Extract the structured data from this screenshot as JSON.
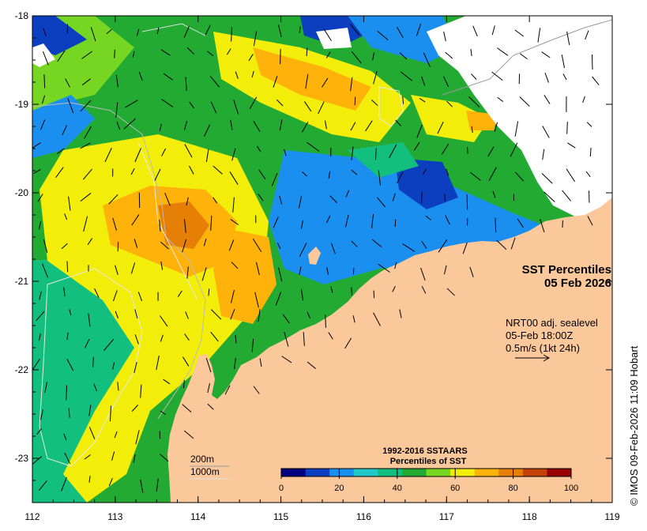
{
  "title": {
    "line1": "SST Percentiles",
    "line2": "05 Feb 2026"
  },
  "currents_info": {
    "line1": "NRT00 adj. sealevel",
    "line2": "05-Feb 18:00Z",
    "line3": "0.5m/s (1kt 24h)"
  },
  "colorbar": {
    "title1": "1992-2016 SSTAARS",
    "title2": "Percentiles of SST",
    "colors": [
      "#00007f",
      "#0b3fbf",
      "#1a8ff0",
      "#22c8c8",
      "#12bf7f",
      "#22aa33",
      "#77d622",
      "#f2ee0a",
      "#ffb20a",
      "#e57f05",
      "#c4420a",
      "#990000"
    ],
    "ticks": [
      "0",
      "20",
      "40",
      "60",
      "80",
      "100"
    ]
  },
  "contour_legend": {
    "label_200": "200m",
    "label_1000": "1000m"
  },
  "credit": "© IMOS 09-Feb-2026 11:09 Hobart",
  "axes": {
    "x_ticks": [
      "112",
      "113",
      "114",
      "115",
      "116",
      "117",
      "118",
      "119"
    ],
    "y_ticks": [
      "-18",
      "-19",
      "-20",
      "-21",
      "-22",
      "-23"
    ],
    "lon_range": [
      112,
      119
    ],
    "lat_range": [
      -23.5,
      -18
    ]
  },
  "palette": {
    "land": "#fbc89b",
    "ocean_base": "#22aa33"
  }
}
